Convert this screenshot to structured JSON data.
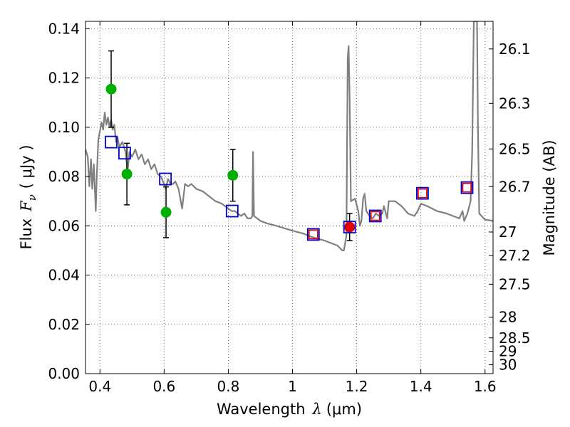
{
  "chart_data": {
    "type": "scatter",
    "xlabel_text": "Wavelength",
    "xlabel_symbol": "λ",
    "xlabel_unit": "(μm)",
    "ylabel_text": "Flux",
    "ylabel_symbol": "F",
    "ylabel_subscript": "ν",
    "ylabel_unit": "( μJy )",
    "y2label": "Magnitude (AB)",
    "xlim": [
      0.355,
      1.625
    ],
    "ylim": [
      0.0,
      0.143
    ],
    "grid": true,
    "x_ticks": [
      0.4,
      0.6,
      0.8,
      1.0,
      1.2,
      1.4,
      1.6
    ],
    "x_tick_labels": [
      "0.4",
      "0.6",
      "0.8",
      "1",
      "1.2",
      "1.4",
      "1.6"
    ],
    "y_ticks": [
      0.0,
      0.02,
      0.04,
      0.06,
      0.08,
      0.1,
      0.12,
      0.14
    ],
    "y_tick_labels": [
      "0.00",
      "0.02",
      "0.04",
      "0.06",
      "0.08",
      "0.10",
      "0.12",
      "0.14"
    ],
    "y2_ticks": [
      {
        "label": "26.1",
        "flux": 0.1318
      },
      {
        "label": "26.3",
        "flux": 0.1097
      },
      {
        "label": "26.5",
        "flux": 0.0912
      },
      {
        "label": "26.7",
        "flux": 0.0759
      },
      {
        "label": "27",
        "flux": 0.0575
      },
      {
        "label": "27.2",
        "flux": 0.0479
      },
      {
        "label": "27.5",
        "flux": 0.0363
      },
      {
        "label": "28",
        "flux": 0.0229
      },
      {
        "label": "28.5",
        "flux": 0.0145
      },
      {
        "label": "29",
        "flux": 0.0091
      },
      {
        "label": "30",
        "flux": 0.0036
      }
    ],
    "series": [
      {
        "name": "model spectrum",
        "style": "line",
        "color": "#808080",
        "points": [
          [
            0.355,
            0.091
          ],
          [
            0.362,
            0.088
          ],
          [
            0.367,
            0.076
          ],
          [
            0.372,
            0.087
          ],
          [
            0.376,
            0.075
          ],
          [
            0.381,
            0.085
          ],
          [
            0.384,
            0.075
          ],
          [
            0.387,
            0.066
          ],
          [
            0.39,
            0.08
          ],
          [
            0.395,
            0.095
          ],
          [
            0.405,
            0.102
          ],
          [
            0.41,
            0.099
          ],
          [
            0.415,
            0.106
          ],
          [
            0.42,
            0.101
          ],
          [
            0.425,
            0.104
          ],
          [
            0.43,
            0.1
          ],
          [
            0.435,
            0.103
          ],
          [
            0.44,
            0.099
          ],
          [
            0.445,
            0.101
          ],
          [
            0.45,
            0.094
          ],
          [
            0.455,
            0.096
          ],
          [
            0.46,
            0.092
          ],
          [
            0.47,
            0.094
          ],
          [
            0.48,
            0.09
          ],
          [
            0.486,
            0.082
          ],
          [
            0.492,
            0.09
          ],
          [
            0.5,
            0.088
          ],
          [
            0.51,
            0.091
          ],
          [
            0.52,
            0.087
          ],
          [
            0.53,
            0.089
          ],
          [
            0.54,
            0.085
          ],
          [
            0.55,
            0.087
          ],
          [
            0.56,
            0.083
          ],
          [
            0.57,
            0.085
          ],
          [
            0.58,
            0.081
          ],
          [
            0.59,
            0.08
          ],
          [
            0.6,
            0.077
          ],
          [
            0.605,
            0.075
          ],
          [
            0.612,
            0.079
          ],
          [
            0.62,
            0.077
          ],
          [
            0.628,
            0.077
          ],
          [
            0.635,
            0.078
          ],
          [
            0.645,
            0.075
          ],
          [
            0.656,
            0.067
          ],
          [
            0.665,
            0.077
          ],
          [
            0.675,
            0.076
          ],
          [
            0.685,
            0.077
          ],
          [
            0.7,
            0.075
          ],
          [
            0.72,
            0.074
          ],
          [
            0.74,
            0.072
          ],
          [
            0.76,
            0.07
          ],
          [
            0.78,
            0.069
          ],
          [
            0.8,
            0.067
          ],
          [
            0.81,
            0.066
          ],
          [
            0.82,
            0.066
          ],
          [
            0.83,
            0.065
          ],
          [
            0.84,
            0.064
          ],
          [
            0.85,
            0.065
          ],
          [
            0.86,
            0.063
          ],
          [
            0.87,
            0.063
          ],
          [
            0.875,
            0.064
          ],
          [
            0.877,
            0.09
          ],
          [
            0.88,
            0.064
          ],
          [
            0.9,
            0.062
          ],
          [
            0.92,
            0.061
          ],
          [
            0.95,
            0.06
          ],
          [
            1.0,
            0.058
          ],
          [
            1.03,
            0.057
          ],
          [
            1.06,
            0.0555
          ],
          [
            1.1,
            0.054
          ],
          [
            1.14,
            0.052
          ],
          [
            1.155,
            0.05
          ],
          [
            1.16,
            0.05
          ],
          [
            1.168,
            0.056
          ],
          [
            1.172,
            0.128
          ],
          [
            1.175,
            0.133
          ],
          [
            1.178,
            0.112
          ],
          [
            1.182,
            0.07
          ],
          [
            1.195,
            0.071
          ],
          [
            1.205,
            0.066
          ],
          [
            1.21,
            0.06
          ],
          [
            1.215,
            0.062
          ],
          [
            1.22,
            0.071
          ],
          [
            1.225,
            0.073
          ],
          [
            1.23,
            0.066
          ],
          [
            1.24,
            0.064
          ],
          [
            1.25,
            0.063
          ],
          [
            1.26,
            0.065
          ],
          [
            1.27,
            0.064
          ],
          [
            1.28,
            0.065
          ],
          [
            1.285,
            0.068
          ],
          [
            1.295,
            0.063
          ],
          [
            1.3,
            0.07
          ],
          [
            1.32,
            0.07
          ],
          [
            1.34,
            0.068
          ],
          [
            1.36,
            0.065
          ],
          [
            1.38,
            0.064
          ],
          [
            1.39,
            0.066
          ],
          [
            1.4,
            0.069
          ],
          [
            1.42,
            0.068
          ],
          [
            1.45,
            0.066
          ],
          [
            1.48,
            0.065
          ],
          [
            1.5,
            0.064
          ],
          [
            1.52,
            0.063
          ],
          [
            1.53,
            0.066
          ],
          [
            1.535,
            0.062
          ],
          [
            1.545,
            0.065
          ],
          [
            1.555,
            0.07
          ],
          [
            1.56,
            0.09
          ],
          [
            1.565,
            0.143
          ],
          [
            1.57,
            0.143
          ],
          [
            1.575,
            0.143
          ],
          [
            1.578,
            0.1
          ],
          [
            1.582,
            0.065
          ],
          [
            1.6,
            0.0625
          ],
          [
            1.625,
            0.062
          ]
        ]
      },
      {
        "name": "observed photometry (green)",
        "style": "marker-circle",
        "color": "#00b000",
        "points": [
          {
            "x": 0.435,
            "y": 0.1155,
            "err_low": 0.0155,
            "err_high": 0.0155
          },
          {
            "x": 0.484,
            "y": 0.081,
            "err_low": 0.0125,
            "err_high": 0.0125
          },
          {
            "x": 0.606,
            "y": 0.0655,
            "err_low": 0.0103,
            "err_high": 0.0103
          },
          {
            "x": 0.814,
            "y": 0.0805,
            "err_low": 0.0105,
            "err_high": 0.0105
          }
        ]
      },
      {
        "name": "observed photometry (red)",
        "style": "marker-circle",
        "color": "#e00000",
        "points": [
          {
            "x": 1.178,
            "y": 0.0595,
            "err_low": 0.0055,
            "err_high": 0.0055
          }
        ]
      },
      {
        "name": "model photometry (blue)",
        "style": "marker-square",
        "color": "#0000cc",
        "points": [
          {
            "x": 0.435,
            "y": 0.094
          },
          {
            "x": 0.477,
            "y": 0.0895
          },
          {
            "x": 0.604,
            "y": 0.079
          },
          {
            "x": 0.812,
            "y": 0.066
          },
          {
            "x": 1.065,
            "y": 0.0565
          },
          {
            "x": 1.178,
            "y": 0.0595
          },
          {
            "x": 1.258,
            "y": 0.064
          },
          {
            "x": 1.405,
            "y": 0.0732
          },
          {
            "x": 1.544,
            "y": 0.0755
          }
        ]
      },
      {
        "name": "model photometry (red)",
        "style": "marker-square",
        "color": "#e00000",
        "points": [
          {
            "x": 1.065,
            "y": 0.0565
          },
          {
            "x": 1.258,
            "y": 0.064
          },
          {
            "x": 1.405,
            "y": 0.0732
          },
          {
            "x": 1.544,
            "y": 0.0755
          }
        ]
      }
    ]
  }
}
